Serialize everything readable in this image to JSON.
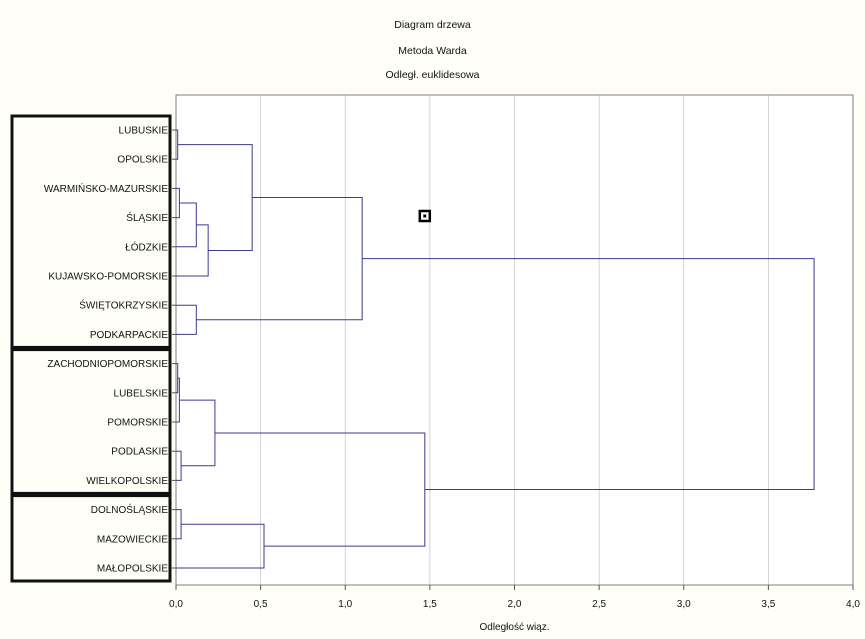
{
  "chart_data": {
    "type": "dendrogram",
    "title_lines": [
      "Diagram drzewa",
      "Metoda Warda",
      "Odległ. euklidesowa"
    ],
    "xlabel": "Odległość wiąz.",
    "xlim": [
      0.0,
      4.0
    ],
    "xticks": [
      "0,0",
      "0,5",
      "1,0",
      "1,5",
      "2,0",
      "2,5",
      "3,0",
      "3,5",
      "4,0"
    ],
    "grid": true,
    "leaves": [
      "LUBUSKIE",
      "OPOLSKIE",
      "WARMIŃSKO-MAZURSKIE",
      "ŚLĄSKIE",
      "ŁÓDZKIE",
      "KUJAWSKO-POMORSKIE",
      "ŚWIĘTOKRZYSKIE",
      "PODKARPACKIE",
      "ZACHODNIOPOMORSKIE",
      "LUBELSKIE",
      "POMORSKIE",
      "PODLASKIE",
      "WIELKOPOLSKIE",
      "DOLNOŚLĄSKIE",
      "MAZOWIECKIE",
      "MAŁOPOLSKIE"
    ],
    "merges": [
      {
        "a": "L0",
        "b": "L1",
        "height": 0.01
      },
      {
        "a": "L2",
        "b": "L3",
        "height": 0.02
      },
      {
        "a": "N1",
        "b": "L4",
        "height": 0.12
      },
      {
        "a": "N2",
        "b": "L5",
        "height": 0.19
      },
      {
        "a": "N0",
        "b": "N3",
        "height": 0.45
      },
      {
        "a": "L6",
        "b": "L7",
        "height": 0.12
      },
      {
        "a": "N4",
        "b": "N5",
        "height": 1.1
      },
      {
        "a": "L8",
        "b": "L9",
        "height": 0.01
      },
      {
        "a": "N7",
        "b": "L10",
        "height": 0.02
      },
      {
        "a": "L11",
        "b": "L12",
        "height": 0.03
      },
      {
        "a": "N8",
        "b": "N9",
        "height": 0.23
      },
      {
        "a": "L13",
        "b": "L14",
        "height": 0.03
      },
      {
        "a": "N11",
        "b": "L15",
        "height": 0.52
      },
      {
        "a": "N10",
        "b": "N12",
        "height": 1.47
      },
      {
        "a": "N6",
        "b": "N13",
        "height": 3.77
      }
    ],
    "cluster_boxes": [
      {
        "from": 0,
        "to": 7
      },
      {
        "from": 8,
        "to": 12
      },
      {
        "from": 13,
        "to": 15
      }
    ],
    "marker": {
      "x": 1.47
    }
  }
}
